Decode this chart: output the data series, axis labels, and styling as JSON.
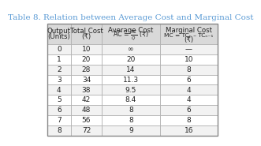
{
  "title": "Table 8. Relation between Average Cost and Marginal Cost",
  "col_headers": [
    "Output\n(Units)",
    "Total Cost\n(₹)",
    "Average Cost\nAC = TC/Q (₹)",
    "Marginal Cost\nMC = TCₙ – TCₙ₋₁\n(₹)"
  ],
  "rows": [
    [
      "0",
      "10",
      "∞",
      "—"
    ],
    [
      "1",
      "20",
      "20",
      "10"
    ],
    [
      "2",
      "28",
      "14",
      "8"
    ],
    [
      "3",
      "34",
      "11.3",
      "6"
    ],
    [
      "4",
      "38",
      "9.5",
      "4"
    ],
    [
      "5",
      "42",
      "8.4",
      "4"
    ],
    [
      "6",
      "48",
      "8",
      "6"
    ],
    [
      "7",
      "56",
      "8",
      "8"
    ],
    [
      "8",
      "72",
      "9",
      "16"
    ]
  ],
  "title_color": "#5b9bd5",
  "header_bg": "#d9d9d9",
  "row_bg_odd": "#f2f2f2",
  "row_bg_even": "#ffffff",
  "border_color": "#aaaaaa",
  "text_color": "#222222",
  "title_fontsize": 7.5,
  "header_fontsize": 6.2,
  "cell_fontsize": 6.5
}
